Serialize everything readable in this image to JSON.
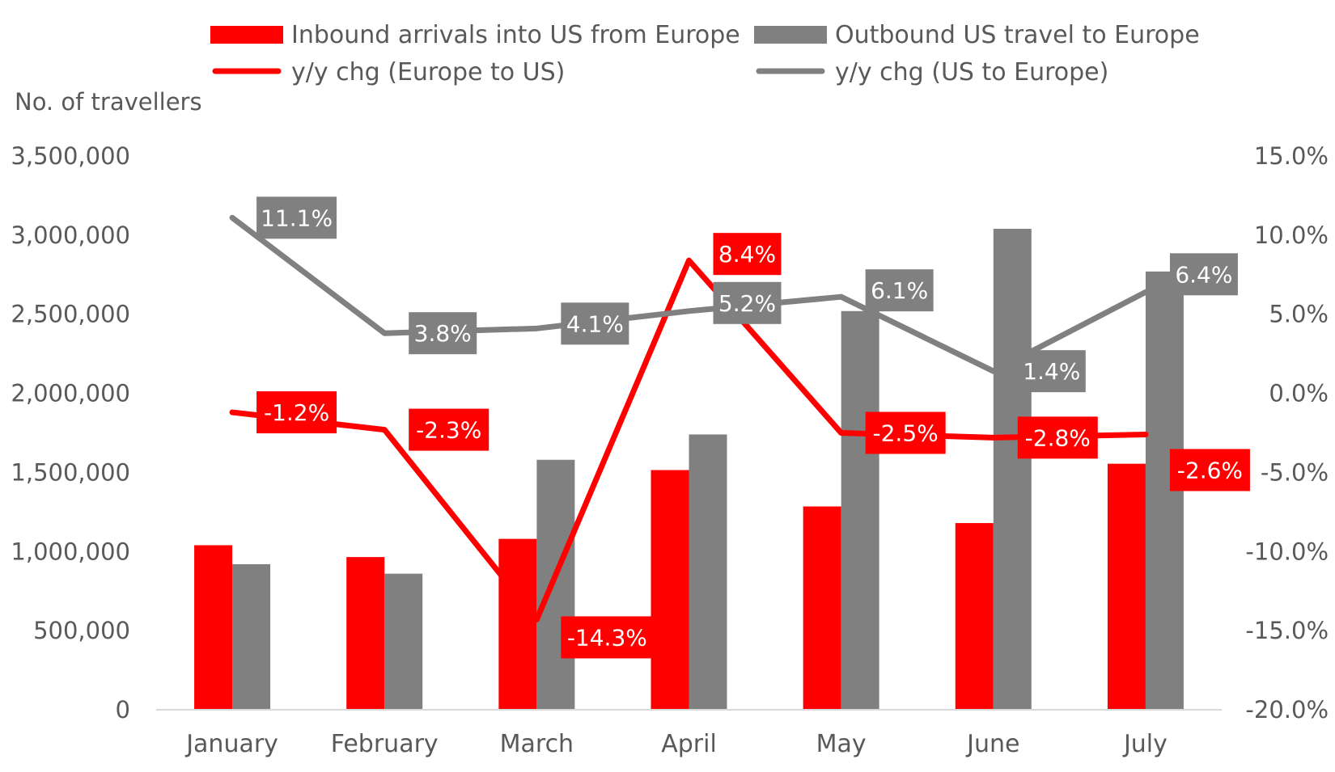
{
  "chart_data": {
    "type": "bar",
    "categories": [
      "January",
      "February",
      "March",
      "April",
      "May",
      "June",
      "July"
    ],
    "ylabel": "No. of travellers",
    "ylim": [
      0,
      3500000
    ],
    "y_ticks": [
      "3,500,000",
      "3,000,000",
      "2,500,000",
      "2,000,000",
      "1,500,000",
      "1,000,000",
      "500,000",
      "0"
    ],
    "y2lim": [
      -20,
      15
    ],
    "y2_ticks": [
      "15.0%",
      "10.0%",
      "5.0%",
      "0.0%",
      "-5.0%",
      "-10.0%",
      "-15.0%",
      "-20.0%"
    ],
    "legend_position": "top",
    "grid": false,
    "series": [
      {
        "name": "Inbound arrivals into US from Europe",
        "type": "bar",
        "axis": "left",
        "color": "#ff0000",
        "values": [
          1040000,
          965000,
          1080000,
          1515000,
          1285000,
          1180000,
          1555000
        ]
      },
      {
        "name": "Outbound US travel to Europe",
        "type": "bar",
        "axis": "left",
        "color": "#808080",
        "values": [
          920000,
          860000,
          1580000,
          1740000,
          2520000,
          3040000,
          2770000
        ]
      },
      {
        "name": "y/y chg (Europe to US)",
        "type": "line",
        "axis": "right",
        "color": "#ff0000",
        "values": [
          -1.2,
          -2.3,
          -14.3,
          8.4,
          -2.5,
          -2.8,
          -2.6
        ],
        "labels": [
          "-1.2%",
          "-2.3%",
          "-14.3%",
          "8.4%",
          "-2.5%",
          "-2.8%",
          "-2.6%"
        ]
      },
      {
        "name": "y/y chg (US to Europe)",
        "type": "line",
        "axis": "right",
        "color": "#808080",
        "values": [
          11.1,
          3.8,
          4.1,
          5.2,
          6.1,
          1.4,
          6.4
        ],
        "labels": [
          "11.1%",
          "3.8%",
          "4.1%",
          "5.2%",
          "6.1%",
          "1.4%",
          "6.4%"
        ]
      }
    ]
  }
}
